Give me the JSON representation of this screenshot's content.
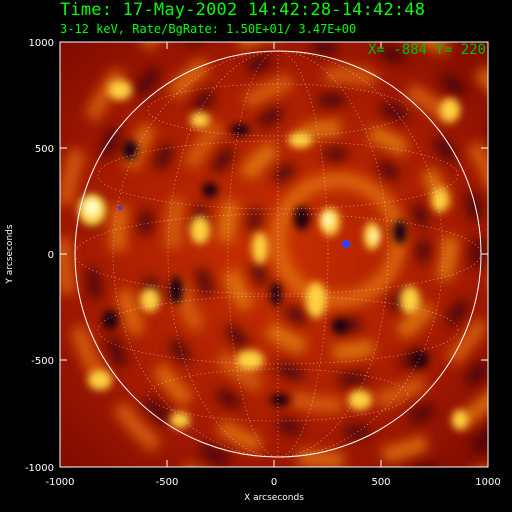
{
  "header": {
    "title": "Time: 17-May-2002 14:42:28-14:42:48",
    "subtitle": "3-12 keV, Rate/BgRate:  1.50E+01/  3.47E+00"
  },
  "cursor": {
    "text": "X=  -884 Y=  220"
  },
  "axes": {
    "xlabel": "X arcseconds",
    "ylabel": "Y arcseconds",
    "xrange": [
      -1000,
      1000
    ],
    "yrange": [
      -1000,
      1000
    ],
    "xticks": [
      "-1000",
      "-500",
      "0",
      "500",
      "1000"
    ],
    "yticks": [
      "1000",
      "500",
      "0",
      "-500",
      "-1000"
    ]
  },
  "image": {
    "colormap": "red-temperature",
    "colors": {
      "dark": "#1a0010",
      "deep_red": "#8a0a00",
      "red": "#c83000",
      "orange": "#ee8a10",
      "yellow": "#ffe060",
      "white": "#ffffd0",
      "blue_spot": "#3040ff",
      "limb": "#ffffff",
      "text_green": "#00ff00"
    },
    "solar_limb": "white circle",
    "grid": "dotted heliographic grid"
  }
}
